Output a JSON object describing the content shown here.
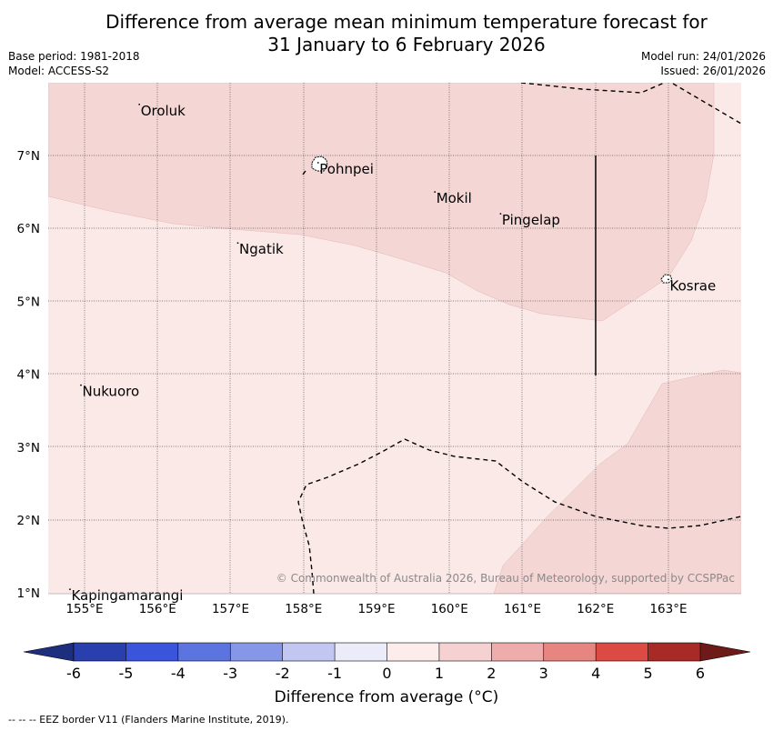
{
  "title": {
    "line1": "Difference from average mean minimum temperature forecast for",
    "line2": "31 January to 6 February 2026"
  },
  "meta": {
    "base_period": "Base period: 1981-2018",
    "model": "Model: ACCESS-S2",
    "model_run": "Model run: 24/01/2026",
    "issued": "Issued: 26/01/2026"
  },
  "map": {
    "lon_ticks": [
      "155°E",
      "156°E",
      "157°E",
      "158°E",
      "159°E",
      "160°E",
      "161°E",
      "162°E",
      "163°E"
    ],
    "lat_ticks": [
      "7°N",
      "6°N",
      "5°N",
      "4°N",
      "3°N",
      "2°N",
      "1°N"
    ],
    "places": [
      {
        "name": "Oroluk",
        "lon": 155.75,
        "lat": 7.7
      },
      {
        "name": "Pohnpei",
        "lon": 158.2,
        "lat": 6.9
      },
      {
        "name": "Mokil",
        "lon": 159.8,
        "lat": 6.5
      },
      {
        "name": "Pingelap",
        "lon": 160.7,
        "lat": 6.2
      },
      {
        "name": "Ngatik",
        "lon": 157.1,
        "lat": 5.8
      },
      {
        "name": "Kosrae",
        "lon": 163.0,
        "lat": 5.3
      },
      {
        "name": "Nukuoro",
        "lon": 154.95,
        "lat": 3.85
      },
      {
        "name": "Kapingamarangi",
        "lon": 154.8,
        "lat": 1.05
      }
    ],
    "copyright": "© Commonwealth of Australia 2026, Bureau of Meteorology, supported by CCSPPac",
    "colors": {
      "zone_0_1": "#fbe9e8",
      "zone_1_2": "#f4d6d5"
    }
  },
  "colorbar": {
    "ticks": [
      "-6",
      "-5",
      "-4",
      "-3",
      "-2",
      "-1",
      "0",
      "1",
      "2",
      "3",
      "4",
      "5",
      "6"
    ],
    "colors": [
      "#2a3fae",
      "#3a54db",
      "#5c74e0",
      "#8797e8",
      "#c2c7f2",
      "#ebebfa",
      "#fcedec",
      "#f5d2d1",
      "#eeadab",
      "#e78580",
      "#db4a43",
      "#a82a26"
    ],
    "extend_low": "#1e2e7e",
    "extend_high": "#6e1a18",
    "label": "Difference from average (°C)"
  },
  "footer": "-- -- -- EEZ border V11 (Flanders Marine Institute, 2019)."
}
